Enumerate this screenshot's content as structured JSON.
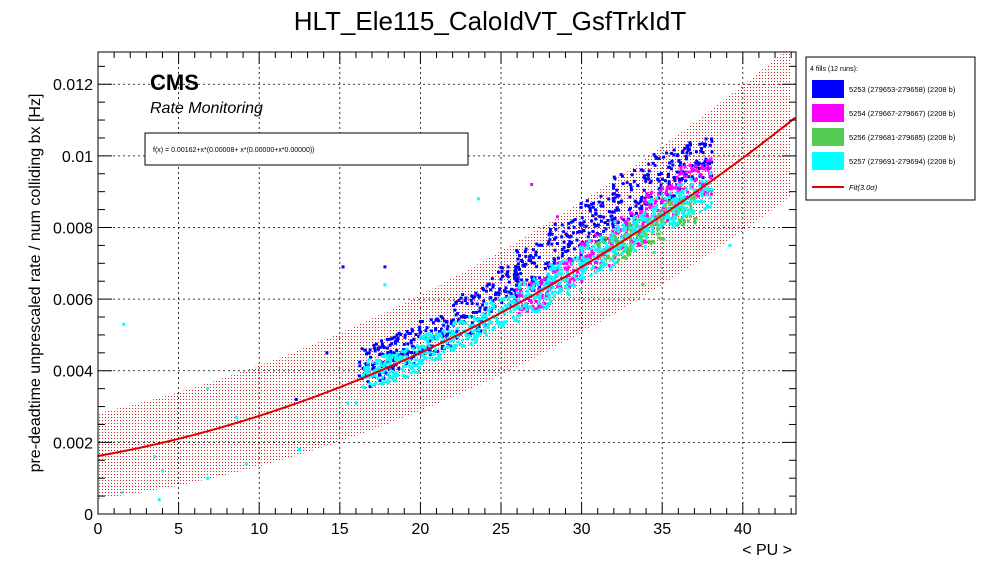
{
  "chart_data": {
    "type": "scatter",
    "title": "HLT_Ele115_CaloIdVT_GsfTrkIdT",
    "xlabel": "< PU >",
    "ylabel": "pre-deadtime unprescaled rate / num colliding bx [Hz]",
    "xlim": [
      0,
      43.3
    ],
    "ylim": [
      0,
      0.0129
    ],
    "xticks": [
      0,
      5,
      10,
      15,
      20,
      25,
      30,
      35,
      40
    ],
    "yticks": [
      0,
      0.002,
      0.004,
      0.006,
      0.008,
      0.01,
      0.012
    ],
    "ytick_labels": [
      "0",
      "0.002",
      "0.004",
      "0.006",
      "0.008",
      "0.01",
      "0.012"
    ],
    "grid": true,
    "experiment_label": "CMS",
    "sub_label": "Rate Monitoring",
    "fit_formula": "f(x) = 0.00162+x*(0.00008+ x*(0.00000+x*0.00000))",
    "fit": {
      "coefficients": [
        0.00162,
        8e-05,
        3.2e-06,
        0.0
      ],
      "band_halfwidth_at_0": 0.0012,
      "band_halfwidth_at_43": 0.0021,
      "color": "#dd0000"
    },
    "legend": {
      "header": "4 fills (12 runs):",
      "placement": "outside-right",
      "entries": [
        {
          "label": "5253 (279653-279658) (2208 b)",
          "color": "#0000ff"
        },
        {
          "label": "5254 (279667-279667) (2208 b)",
          "color": "#ff00ff"
        },
        {
          "label": "5256 (279681-279685) (2208 b)",
          "color": "#55cc55"
        },
        {
          "label": "5257 (279691-279694) (2208 b)",
          "color": "#00ffff"
        }
      ],
      "fit_label": "Fit(3.0σ)"
    },
    "series": [
      {
        "name": "5253 (279653-279658) (2208 b)",
        "color": "#0000ff",
        "points": [
          [
            15.2,
            0.0069
          ],
          [
            17.8,
            0.0069
          ],
          [
            14.2,
            0.0045
          ],
          [
            12.3,
            0.0032
          ],
          [
            17.4,
            0.0046
          ],
          [
            18.0,
            0.0045
          ]
        ],
        "cluster": [
          [
            17.3,
            0.0042,
            0.0006
          ],
          [
            19,
            0.0046,
            0.0005
          ],
          [
            21,
            0.005,
            0.0005
          ],
          [
            23,
            0.0056,
            0.0006
          ],
          [
            25,
            0.0063,
            0.0006
          ],
          [
            27,
            0.0069,
            0.0007
          ],
          [
            29,
            0.0076,
            0.0006
          ],
          [
            31,
            0.0082,
            0.0007
          ],
          [
            33,
            0.0089,
            0.0007
          ],
          [
            35,
            0.0094,
            0.0007
          ],
          [
            37,
            0.0099,
            0.0006
          ]
        ]
      },
      {
        "name": "5254 (279667-279667) (2208 b)",
        "color": "#ff00ff",
        "points": [
          [
            26.9,
            0.0092
          ],
          [
            28.5,
            0.0083
          ]
        ],
        "cluster": [
          [
            27,
            0.0061,
            0.0004
          ],
          [
            29,
            0.0067,
            0.0004
          ],
          [
            31,
            0.0073,
            0.0005
          ],
          [
            33,
            0.0079,
            0.0005
          ],
          [
            35,
            0.0086,
            0.0005
          ],
          [
            37,
            0.0093,
            0.0005
          ]
        ]
      },
      {
        "name": "5256 (279681-279685) (2208 b)",
        "color": "#55cc55",
        "points": [
          [
            33.8,
            0.0064
          ],
          [
            36.5,
            0.0083
          ],
          [
            34.5,
            0.0073
          ]
        ],
        "cluster": [
          [
            32,
            0.0074,
            0.0004
          ],
          [
            34,
            0.0079,
            0.0004
          ],
          [
            36,
            0.0084,
            0.0004
          ]
        ]
      },
      {
        "name": "5257 (279691-279694) (2208 b)",
        "color": "#00ffff",
        "points": [
          [
            1.6,
            0.0053
          ],
          [
            1.5,
            0.0006
          ],
          [
            3.8,
            0.0004
          ],
          [
            3.5,
            0.0016
          ],
          [
            4.0,
            0.0012
          ],
          [
            6.8,
            0.0035
          ],
          [
            6.8,
            0.001
          ],
          [
            9.2,
            0.0014
          ],
          [
            12.5,
            0.0018
          ],
          [
            15.5,
            0.0031
          ],
          [
            16.0,
            0.0031
          ],
          [
            17.8,
            0.0064
          ],
          [
            23.6,
            0.0088
          ],
          [
            39.2,
            0.0075
          ],
          [
            8.6,
            0.0027
          ]
        ],
        "cluster": [
          [
            17.5,
            0.004,
            0.0004
          ],
          [
            19,
            0.0042,
            0.0004
          ],
          [
            21,
            0.0047,
            0.0004
          ],
          [
            23,
            0.0051,
            0.0004
          ],
          [
            25,
            0.0056,
            0.0004
          ],
          [
            27,
            0.0061,
            0.0005
          ],
          [
            29,
            0.0066,
            0.0005
          ],
          [
            31,
            0.0072,
            0.0005
          ],
          [
            33,
            0.0078,
            0.0005
          ],
          [
            35,
            0.0084,
            0.0005
          ],
          [
            37,
            0.0089,
            0.0005
          ]
        ]
      }
    ]
  }
}
